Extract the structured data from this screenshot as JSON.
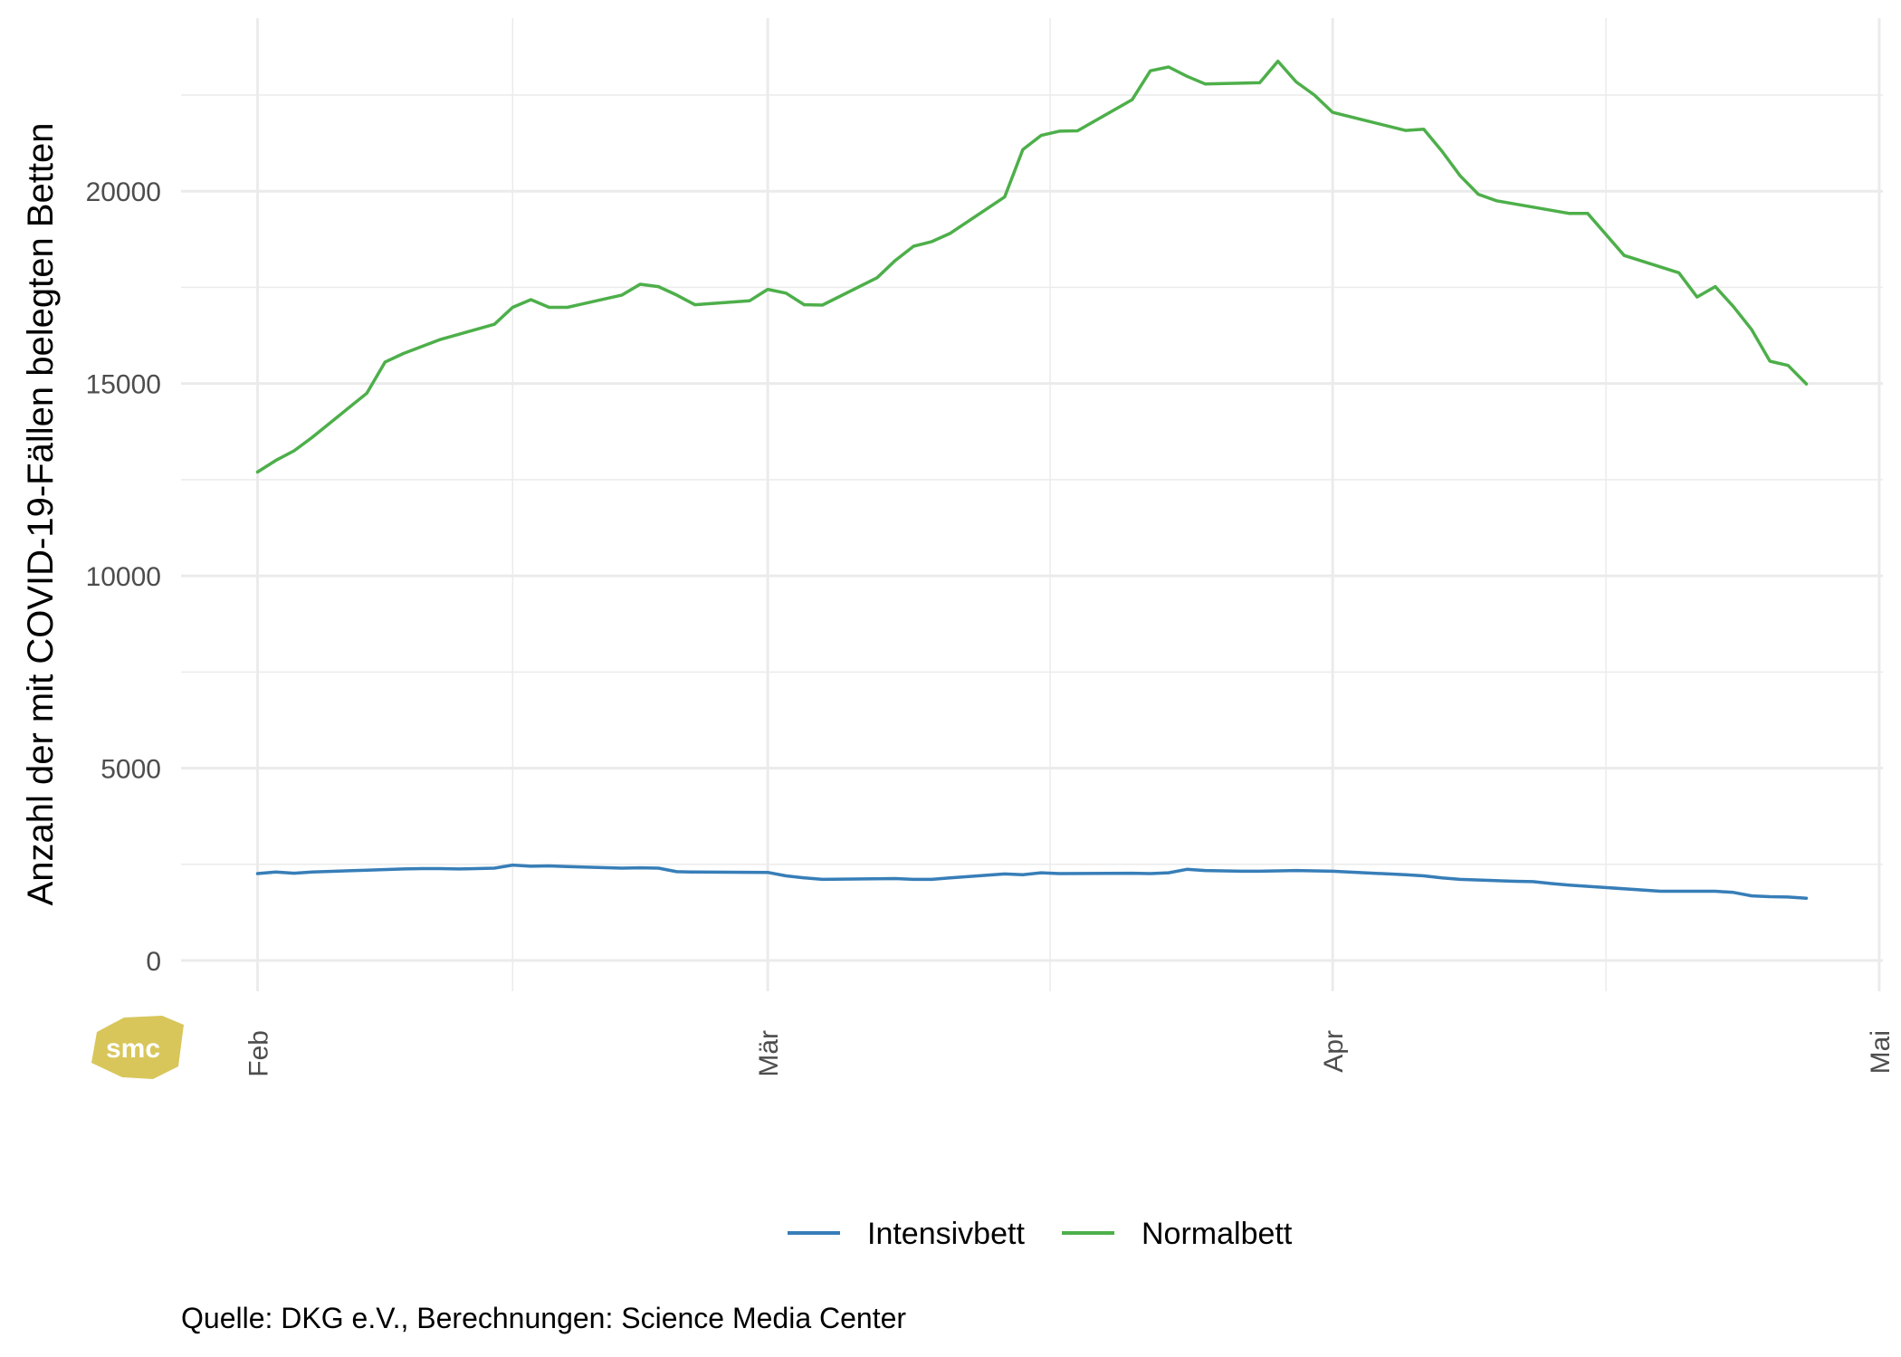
{
  "chart_data": {
    "type": "line",
    "title": "",
    "xlabel": "",
    "ylabel": "Anzahl der mit COVID-19-Fällen belegten Betten",
    "ylim": [
      -800,
      24500
    ],
    "y_ticks": [
      0,
      5000,
      10000,
      15000,
      20000
    ],
    "y_tick_labels": [
      "0",
      "5000",
      "10000",
      "15000",
      "20000"
    ],
    "x_ticks": [
      {
        "day": 0,
        "label": "Feb"
      },
      {
        "day": 28,
        "label": "Mär"
      },
      {
        "day": 59,
        "label": "Apr"
      },
      {
        "day": 89,
        "label": "Mai"
      }
    ],
    "x_minor_ticks": [
      14,
      43.5,
      74
    ],
    "xlim": [
      -4.2,
      89.2
    ],
    "x_unit": "days since Feb 1",
    "grid": true,
    "legend_position": "bottom",
    "caption": "Quelle: DKG e.V., Berechnungen: Science Media Center",
    "logo_text": "smc",
    "series": [
      {
        "name": "Intensivbett",
        "color": "#377eb8",
        "x": [
          0,
          1,
          2,
          3,
          6,
          8,
          9,
          10,
          11,
          12,
          13,
          14,
          15,
          16,
          17,
          20,
          21,
          22,
          23,
          24,
          28,
          29,
          30,
          31,
          35,
          36,
          37,
          38,
          41,
          42,
          43,
          44,
          48,
          49,
          50,
          51,
          52,
          54,
          55,
          56,
          57,
          59,
          63,
          64,
          65,
          66,
          69,
          70,
          71,
          72,
          77,
          78,
          79,
          80,
          81,
          82,
          83,
          84,
          85
        ],
        "values": [
          2260,
          2300,
          2270,
          2300,
          2350,
          2380,
          2390,
          2390,
          2380,
          2390,
          2400,
          2480,
          2450,
          2460,
          2440,
          2400,
          2410,
          2400,
          2310,
          2300,
          2290,
          2200,
          2150,
          2110,
          2130,
          2110,
          2110,
          2150,
          2250,
          2230,
          2280,
          2260,
          2270,
          2260,
          2280,
          2370,
          2340,
          2320,
          2320,
          2330,
          2340,
          2320,
          2230,
          2200,
          2150,
          2110,
          2060,
          2050,
          2000,
          1960,
          1800,
          1800,
          1800,
          1800,
          1770,
          1680,
          1660,
          1650,
          1620
        ]
      },
      {
        "name": "Normalbett",
        "color": "#4daf4a",
        "x": [
          0,
          1,
          2,
          3,
          6,
          7,
          8,
          10,
          13,
          14,
          15,
          16,
          17,
          20,
          21,
          22,
          23,
          24,
          27,
          28,
          29,
          30,
          31,
          34,
          35,
          36,
          37,
          38,
          41,
          42,
          43,
          44,
          45,
          48,
          49,
          50,
          51,
          52,
          55,
          56,
          57,
          58,
          59,
          63,
          64,
          65,
          66,
          67,
          68,
          72,
          73,
          75,
          78,
          79,
          80,
          81,
          82,
          83,
          84,
          85
        ],
        "values": [
          12700,
          13000,
          13250,
          13600,
          14750,
          15560,
          15780,
          16140,
          16540,
          16980,
          17180,
          16980,
          16980,
          17300,
          17580,
          17520,
          17300,
          17050,
          17150,
          17450,
          17350,
          17050,
          17040,
          17750,
          18200,
          18570,
          18690,
          18900,
          19850,
          21080,
          21450,
          21560,
          21570,
          22380,
          23130,
          23230,
          22990,
          22790,
          22820,
          23380,
          22840,
          22500,
          22050,
          21580,
          21610,
          21040,
          20400,
          19920,
          19750,
          19420,
          19420,
          18330,
          17880,
          17250,
          17520,
          17000,
          16400,
          15580,
          15470,
          14990
        ]
      }
    ]
  }
}
